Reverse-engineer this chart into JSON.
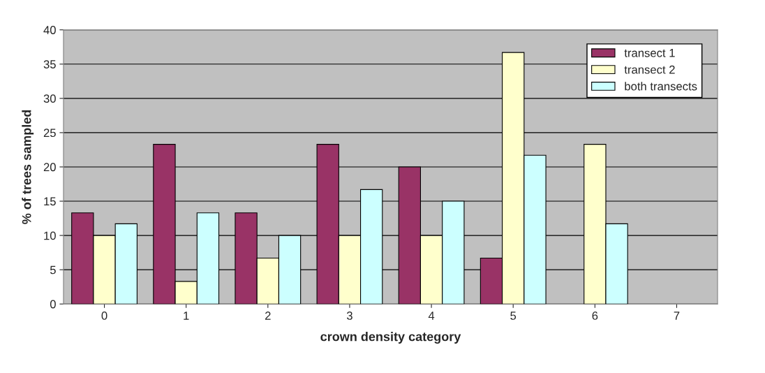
{
  "chart_data": {
    "type": "bar",
    "xlabel": "crown density category",
    "ylabel": "% of trees sampled",
    "categories": [
      "0",
      "1",
      "2",
      "3",
      "4",
      "5",
      "6",
      "7"
    ],
    "series": [
      {
        "name": "transect 1",
        "color": "#993366",
        "values": [
          13.3,
          23.3,
          13.3,
          23.3,
          20,
          6.7,
          0,
          0
        ]
      },
      {
        "name": "transect 2",
        "color": "#ffffcc",
        "values": [
          10,
          3.3,
          6.7,
          10,
          10,
          36.7,
          23.3,
          0
        ]
      },
      {
        "name": "both transects",
        "color": "#ccffff",
        "values": [
          11.7,
          13.3,
          10,
          16.7,
          15,
          21.7,
          11.7,
          0
        ]
      }
    ],
    "ylim": [
      0,
      40
    ],
    "yticks": [
      0,
      5,
      10,
      15,
      20,
      25,
      30,
      35,
      40
    ],
    "grid": "y",
    "legend": "top right"
  }
}
